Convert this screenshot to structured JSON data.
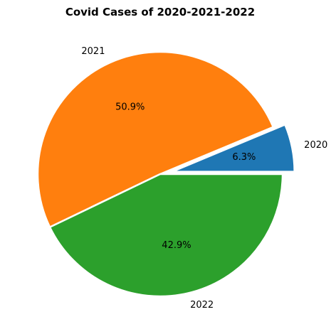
{
  "chart_data": {
    "type": "pie",
    "title": "Covid Cases of 2020-2021-2022",
    "labels": [
      "2020",
      "2021",
      "2022"
    ],
    "values": [
      6.3,
      50.9,
      42.9
    ],
    "percent_labels": [
      "6.3%",
      "50.9%",
      "42.9%"
    ],
    "colors": [
      "#1f77b4",
      "#ff7f0e",
      "#2ca02c"
    ],
    "exploded": [
      "2020"
    ],
    "start_angle_deg": 0,
    "direction": "counterclockwise"
  }
}
